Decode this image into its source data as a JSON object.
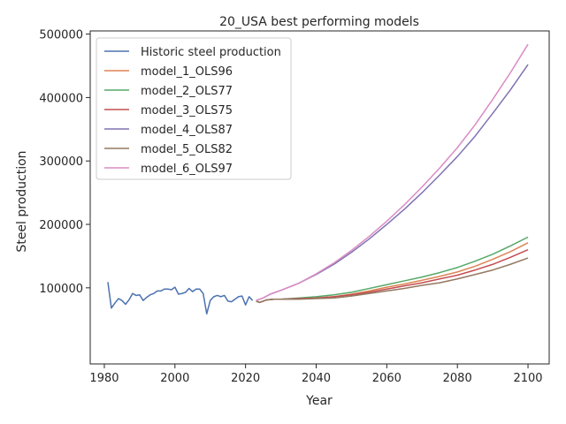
{
  "chart_data": {
    "type": "line",
    "title": "20_USA best performing models",
    "xlabel": "Year",
    "ylabel": "Steel production",
    "xlim": [
      1976,
      2106
    ],
    "ylim": [
      -20000,
      505000
    ],
    "xticks": [
      1980,
      2000,
      2020,
      2040,
      2060,
      2080,
      2100
    ],
    "yticks": [
      100000,
      200000,
      300000,
      400000,
      500000
    ],
    "grid": false,
    "legend_position": "top-left",
    "series": [
      {
        "name": "Historic steel production",
        "color": "#4c72b0",
        "x": [
          1981,
          1982,
          1983,
          1984,
          1985,
          1986,
          1987,
          1988,
          1989,
          1990,
          1991,
          1992,
          1993,
          1994,
          1995,
          1996,
          1997,
          1998,
          1999,
          2000,
          2001,
          2002,
          2003,
          2004,
          2005,
          2006,
          2007,
          2008,
          2009,
          2010,
          2011,
          2012,
          2013,
          2014,
          2015,
          2016,
          2017,
          2018,
          2019,
          2020,
          2021,
          2022
        ],
        "y": [
          109000,
          68000,
          76000,
          83000,
          80000,
          74000,
          81000,
          91000,
          88000,
          89000,
          80000,
          85000,
          89000,
          91000,
          95000,
          95000,
          98000,
          98000,
          97000,
          101000,
          90000,
          91000,
          93000,
          99000,
          94000,
          98000,
          98000,
          91000,
          59000,
          80000,
          86000,
          88000,
          86000,
          88000,
          79000,
          78000,
          82000,
          86000,
          87000,
          73000,
          86000,
          80000
        ]
      },
      {
        "name": "model_1_OLS96",
        "color": "#dd8452",
        "x": [
          2023,
          2024,
          2025,
          2026,
          2028,
          2030,
          2035,
          2040,
          2045,
          2050,
          2055,
          2060,
          2065,
          2070,
          2075,
          2080,
          2085,
          2090,
          2095,
          2100
        ],
        "y": [
          79000,
          77000,
          79000,
          81000,
          82000,
          82000,
          83000,
          84000,
          86000,
          90000,
          95000,
          101000,
          106000,
          112000,
          118000,
          125000,
          134000,
          145000,
          157000,
          171000
        ]
      },
      {
        "name": "model_2_OLS77",
        "color": "#55a868",
        "x": [
          2023,
          2024,
          2025,
          2026,
          2028,
          2030,
          2035,
          2040,
          2045,
          2050,
          2055,
          2060,
          2065,
          2070,
          2075,
          2080,
          2085,
          2090,
          2095,
          2100
        ],
        "y": [
          79000,
          77000,
          79000,
          81000,
          82000,
          82000,
          84000,
          86000,
          89000,
          93000,
          99000,
          105000,
          111000,
          117000,
          124000,
          132000,
          142000,
          153000,
          166000,
          180000
        ]
      },
      {
        "name": "model_3_OLS75",
        "color": "#c44e52",
        "x": [
          2023,
          2024,
          2025,
          2026,
          2028,
          2030,
          2035,
          2040,
          2045,
          2050,
          2055,
          2060,
          2065,
          2070,
          2075,
          2080,
          2085,
          2090,
          2095,
          2100
        ],
        "y": [
          79000,
          77000,
          79000,
          81000,
          82000,
          82000,
          83000,
          84000,
          86000,
          89000,
          93000,
          98000,
          103000,
          108000,
          114000,
          120000,
          128000,
          137000,
          148000,
          160000
        ]
      },
      {
        "name": "model_4_OLS87",
        "color": "#8172b3",
        "x": [
          2023,
          2025,
          2027,
          2030,
          2035,
          2040,
          2045,
          2050,
          2055,
          2060,
          2065,
          2070,
          2075,
          2080,
          2085,
          2090,
          2095,
          2100
        ],
        "y": [
          80000,
          84000,
          90000,
          96000,
          107000,
          121000,
          137000,
          156000,
          177000,
          200000,
          224000,
          250000,
          278000,
          307000,
          339000,
          375000,
          412000,
          452000
        ]
      },
      {
        "name": "model_5_OLS82",
        "color": "#937860",
        "x": [
          2023,
          2024,
          2025,
          2026,
          2028,
          2030,
          2035,
          2040,
          2045,
          2050,
          2055,
          2060,
          2065,
          2070,
          2075,
          2080,
          2085,
          2090,
          2095,
          2100
        ],
        "y": [
          79000,
          77000,
          79000,
          81000,
          82000,
          82000,
          82000,
          83000,
          84000,
          87000,
          91000,
          95000,
          99000,
          104000,
          108000,
          114000,
          121000,
          128000,
          137000,
          147000
        ]
      },
      {
        "name": "model_6_OLS97",
        "color": "#da8bc3",
        "x": [
          2023,
          2025,
          2027,
          2030,
          2035,
          2040,
          2045,
          2050,
          2055,
          2060,
          2065,
          2070,
          2075,
          2080,
          2085,
          2090,
          2095,
          2100
        ],
        "y": [
          80000,
          84000,
          90000,
          96000,
          107000,
          122000,
          139000,
          159000,
          181000,
          205000,
          231000,
          259000,
          289000,
          321000,
          357000,
          397000,
          439000,
          484000
        ]
      }
    ]
  }
}
